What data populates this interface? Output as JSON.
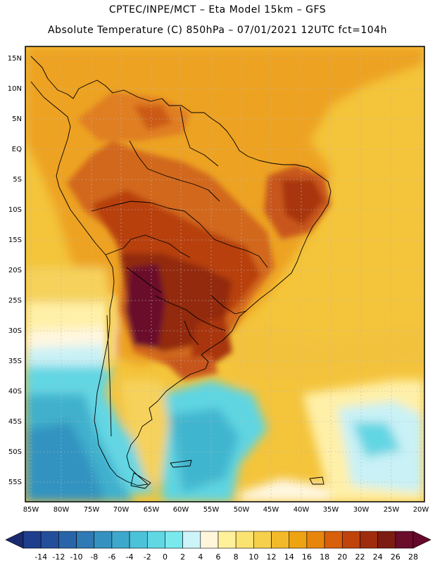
{
  "header": {
    "line1": "CPTEC/INPE/MCT –  Eta Model 15km – GFS",
    "line2": "Absolute Temperature (C) 850hPa – 07/01/2021 12UTC fct=104h"
  },
  "map": {
    "lat_labels": [
      "15N",
      "10N",
      "5N",
      "EQ",
      "5S",
      "10S",
      "15S",
      "20S",
      "25S",
      "30S",
      "35S",
      "40S",
      "45S",
      "50S",
      "55S"
    ],
    "lat_values": [
      15,
      10,
      5,
      0,
      -5,
      -10,
      -15,
      -20,
      -25,
      -30,
      -35,
      -40,
      -45,
      -50,
      -55
    ],
    "lon_labels": [
      "85W",
      "80W",
      "75W",
      "70W",
      "65W",
      "60W",
      "55W",
      "50W",
      "45W",
      "40W",
      "35W",
      "30W",
      "25W",
      "20W"
    ],
    "lon_values": [
      -85,
      -80,
      -75,
      -70,
      -65,
      -60,
      -55,
      -50,
      -45,
      -40,
      -35,
      -30,
      -25,
      -20
    ],
    "lon_range": [
      -86,
      -19
    ],
    "lat_range": [
      -58,
      17
    ]
  },
  "colorbar": {
    "labels": [
      "-14",
      "-12",
      "-10",
      "-8",
      "-6",
      "-4",
      "-2",
      "0",
      "2",
      "4",
      "6",
      "8",
      "10",
      "12",
      "14",
      "16",
      "18",
      "20",
      "22",
      "24",
      "26",
      "28"
    ],
    "colors": [
      "#1e3d8c",
      "#234f9a",
      "#2a64a8",
      "#2f79b4",
      "#3591c0",
      "#3ea8cc",
      "#4cc2d8",
      "#5fd8e4",
      "#7ae9ee",
      "#cdf4f8",
      "#fff6dc",
      "#fff19a",
      "#fbe372",
      "#f6d04a",
      "#f2ba2a",
      "#eea312",
      "#e8850c",
      "#d8600a",
      "#c0430c",
      "#a02c0e",
      "#7c1c12",
      "#6a0c2a"
    ],
    "end_low": "#1a2a6e",
    "end_high": "#66082c"
  }
}
